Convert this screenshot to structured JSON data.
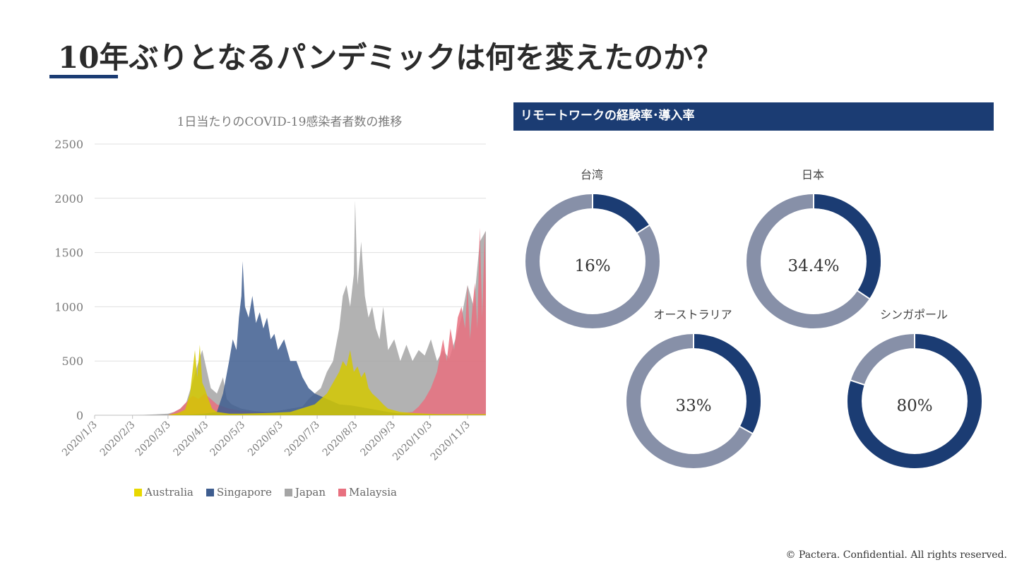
{
  "page": {
    "title": "10年ぶりとなるパンデミックは何を変えたのか？",
    "footer": "© Pactera.  Confidential.  All rights reserved."
  },
  "chart_data": [
    {
      "type": "area",
      "title": "1日当たりのCOVID-19感染者者数の推移",
      "ylim": [
        0,
        2500
      ],
      "yticks": [
        "0",
        "500",
        "1000",
        "1500",
        "2000",
        "2500"
      ],
      "ytick_values": [
        0,
        500,
        1000,
        1500,
        2000,
        2500
      ],
      "xticks": [
        "2020/1/3",
        "2020/2/3",
        "2020/3/3",
        "2020/4/3",
        "2020/5/3",
        "2020/6/3",
        "2020/7/3",
        "2020/8/3",
        "2020/9/3",
        "2020/10/3",
        "2020/11/3"
      ],
      "x_day_index": [
        0,
        31,
        60,
        91,
        121,
        152,
        182,
        213,
        244,
        274,
        305
      ],
      "x_max_day": 320,
      "legend": [
        "Australia",
        "Singapore",
        "Japan",
        "Malaysia"
      ],
      "series": [
        {
          "name": "Japan",
          "color": "#a5a5a5",
          "points": [
            [
              0,
              0
            ],
            [
              30,
              0
            ],
            [
              40,
              3
            ],
            [
              50,
              8
            ],
            [
              60,
              15
            ],
            [
              65,
              30
            ],
            [
              70,
              60
            ],
            [
              75,
              120
            ],
            [
              80,
              300
            ],
            [
              85,
              500
            ],
            [
              88,
              600
            ],
            [
              92,
              400
            ],
            [
              95,
              250
            ],
            [
              100,
              200
            ],
            [
              105,
              350
            ],
            [
              108,
              150
            ],
            [
              112,
              100
            ],
            [
              120,
              60
            ],
            [
              130,
              40
            ],
            [
              140,
              30
            ],
            [
              150,
              40
            ],
            [
              160,
              60
            ],
            [
              170,
              80
            ],
            [
              175,
              150
            ],
            [
              180,
              200
            ],
            [
              185,
              250
            ],
            [
              190,
              400
            ],
            [
              195,
              500
            ],
            [
              200,
              800
            ],
            [
              203,
              1100
            ],
            [
              206,
              1200
            ],
            [
              209,
              1000
            ],
            [
              212,
              1300
            ],
            [
              213,
              1980
            ],
            [
              215,
              1200
            ],
            [
              218,
              1600
            ],
            [
              221,
              1100
            ],
            [
              224,
              900
            ],
            [
              227,
              1000
            ],
            [
              230,
              800
            ],
            [
              233,
              700
            ],
            [
              236,
              1000
            ],
            [
              240,
              600
            ],
            [
              245,
              700
            ],
            [
              250,
              500
            ],
            [
              255,
              650
            ],
            [
              260,
              500
            ],
            [
              265,
              600
            ],
            [
              270,
              550
            ],
            [
              275,
              700
            ],
            [
              280,
              500
            ],
            [
              285,
              600
            ],
            [
              290,
              520
            ],
            [
              295,
              700
            ],
            [
              300,
              900
            ],
            [
              305,
              1200
            ],
            [
              310,
              1000
            ],
            [
              315,
              1600
            ],
            [
              320,
              1700
            ]
          ]
        },
        {
          "name": "Malaysia",
          "color": "#e8707f",
          "points": [
            [
              0,
              0
            ],
            [
              60,
              0
            ],
            [
              70,
              60
            ],
            [
              75,
              120
            ],
            [
              80,
              180
            ],
            [
              85,
              150
            ],
            [
              90,
              200
            ],
            [
              95,
              150
            ],
            [
              100,
              100
            ],
            [
              110,
              60
            ],
            [
              120,
              40
            ],
            [
              130,
              30
            ],
            [
              150,
              20
            ],
            [
              170,
              15
            ],
            [
              200,
              10
            ],
            [
              230,
              10
            ],
            [
              250,
              20
            ],
            [
              260,
              30
            ],
            [
              265,
              80
            ],
            [
              270,
              150
            ],
            [
              275,
              250
            ],
            [
              280,
              400
            ],
            [
              285,
              700
            ],
            [
              288,
              500
            ],
            [
              291,
              800
            ],
            [
              294,
              600
            ],
            [
              297,
              900
            ],
            [
              300,
              1000
            ],
            [
              303,
              800
            ],
            [
              305,
              1200
            ],
            [
              307,
              700
            ],
            [
              309,
              1000
            ],
            [
              311,
              1220
            ],
            [
              313,
              800
            ],
            [
              315,
              1730
            ],
            [
              317,
              900
            ],
            [
              319,
              1700
            ],
            [
              320,
              1200
            ]
          ]
        },
        {
          "name": "Singapore",
          "color": "#3e5d8f",
          "points": [
            [
              0,
              0
            ],
            [
              60,
              0
            ],
            [
              75,
              5
            ],
            [
              90,
              15
            ],
            [
              100,
              30
            ],
            [
              105,
              200
            ],
            [
              110,
              500
            ],
            [
              113,
              700
            ],
            [
              116,
              600
            ],
            [
              118,
              900
            ],
            [
              120,
              1100
            ],
            [
              121,
              1420
            ],
            [
              123,
              1000
            ],
            [
              126,
              900
            ],
            [
              129,
              1100
            ],
            [
              132,
              850
            ],
            [
              135,
              950
            ],
            [
              138,
              800
            ],
            [
              141,
              900
            ],
            [
              144,
              700
            ],
            [
              147,
              750
            ],
            [
              150,
              600
            ],
            [
              155,
              700
            ],
            [
              160,
              500
            ],
            [
              165,
              500
            ],
            [
              170,
              350
            ],
            [
              175,
              250
            ],
            [
              180,
              200
            ],
            [
              190,
              150
            ],
            [
              200,
              100
            ],
            [
              210,
              90
            ],
            [
              220,
              70
            ],
            [
              230,
              50
            ],
            [
              240,
              30
            ],
            [
              250,
              15
            ],
            [
              260,
              10
            ],
            [
              280,
              5
            ],
            [
              320,
              3
            ]
          ]
        },
        {
          "name": "Australia",
          "color": "#d4c800",
          "points": [
            [
              0,
              0
            ],
            [
              60,
              0
            ],
            [
              68,
              20
            ],
            [
              74,
              50
            ],
            [
              78,
              200
            ],
            [
              80,
              400
            ],
            [
              82,
              600
            ],
            [
              84,
              350
            ],
            [
              86,
              650
            ],
            [
              88,
              300
            ],
            [
              90,
              250
            ],
            [
              93,
              150
            ],
            [
              96,
              60
            ],
            [
              100,
              30
            ],
            [
              110,
              15
            ],
            [
              120,
              15
            ],
            [
              140,
              20
            ],
            [
              160,
              30
            ],
            [
              180,
              100
            ],
            [
              190,
              200
            ],
            [
              195,
              300
            ],
            [
              200,
              400
            ],
            [
              203,
              500
            ],
            [
              206,
              450
            ],
            [
              209,
              600
            ],
            [
              212,
              400
            ],
            [
              215,
              450
            ],
            [
              218,
              350
            ],
            [
              221,
              400
            ],
            [
              224,
              250
            ],
            [
              227,
              200
            ],
            [
              232,
              150
            ],
            [
              236,
              100
            ],
            [
              240,
              60
            ],
            [
              250,
              30
            ],
            [
              260,
              20
            ],
            [
              280,
              10
            ],
            [
              300,
              10
            ],
            [
              320,
              10
            ]
          ]
        }
      ]
    },
    {
      "type": "pie",
      "subtype": "donut",
      "title": "リモートワークの経験率･導入率",
      "series": [
        {
          "label": "台湾",
          "value": 16,
          "display": "16%"
        },
        {
          "label": "日本",
          "value": 34.4,
          "display": "34.4%"
        },
        {
          "label": "オーストラリア",
          "value": 33,
          "display": "33%"
        },
        {
          "label": "シンガポール",
          "value": 80,
          "display": "80%"
        }
      ],
      "colors": {
        "filled": "#1b3c73",
        "remaining": "#8790a8"
      }
    }
  ]
}
